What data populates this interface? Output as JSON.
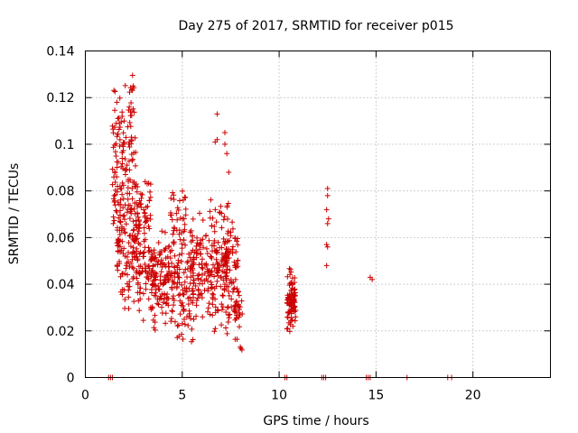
{
  "chart_data": {
    "type": "scatter",
    "title": "Day 275 of 2017, SRMTID for receiver p015",
    "xlabel": "GPS time / hours",
    "ylabel": "SRMTID / TECUs",
    "xlim": [
      0,
      24
    ],
    "ylim": [
      0,
      0.14
    ],
    "xticks": [
      0,
      5,
      10,
      15,
      20
    ],
    "xtick_labels": [
      "0",
      "5",
      "10",
      "15",
      "20"
    ],
    "yticks": [
      0,
      0.02,
      0.04,
      0.06,
      0.08,
      0.1,
      0.12,
      0.14
    ],
    "ytick_labels": [
      "0",
      "0.02",
      "0.04",
      "0.06",
      "0.08",
      "0.1",
      "0.12",
      "0.14"
    ],
    "grid": true,
    "marker": "+",
    "marker_color": "#cc0000",
    "series": [
      {
        "name": "SRMTID",
        "clusters": [
          {
            "x": [
              1.4,
              2.6
            ],
            "y": [
              0.045,
              0.137
            ],
            "n": 170
          },
          {
            "x": [
              1.6,
              2.8
            ],
            "y": [
              0.025,
              0.08
            ],
            "n": 90
          },
          {
            "x": [
              2.6,
              3.4
            ],
            "y": [
              0.04,
              0.09
            ],
            "n": 70
          },
          {
            "x": [
              2.6,
              3.6
            ],
            "y": [
              0.023,
              0.06
            ],
            "n": 50
          },
          {
            "x": [
              3.4,
              4.6
            ],
            "y": [
              0.018,
              0.065
            ],
            "n": 130
          },
          {
            "x": [
              4.4,
              5.2
            ],
            "y": [
              0.05,
              0.086
            ],
            "n": 40
          },
          {
            "x": [
              4.6,
              5.6
            ],
            "y": [
              0.012,
              0.065
            ],
            "n": 90
          },
          {
            "x": [
              5.4,
              6.6
            ],
            "y": [
              0.02,
              0.075
            ],
            "n": 100
          },
          {
            "x": [
              6.4,
              7.4
            ],
            "y": [
              0.015,
              0.08
            ],
            "n": 100
          },
          {
            "x": [
              7.0,
              7.9
            ],
            "y": [
              0.018,
              0.075
            ],
            "n": 80
          },
          {
            "x": [
              7.7,
              8.1
            ],
            "y": [
              0.008,
              0.05
            ],
            "n": 30
          },
          {
            "x": [
              10.4,
              10.85
            ],
            "y": [
              0.018,
              0.05
            ],
            "n": 90
          }
        ],
        "points": [
          {
            "x": 6.8,
            "y": 0.113
          },
          {
            "x": 6.7,
            "y": 0.101
          },
          {
            "x": 6.8,
            "y": 0.102
          },
          {
            "x": 7.2,
            "y": 0.105
          },
          {
            "x": 7.2,
            "y": 0.1
          },
          {
            "x": 7.3,
            "y": 0.096
          },
          {
            "x": 7.4,
            "y": 0.088
          },
          {
            "x": 12.5,
            "y": 0.081
          },
          {
            "x": 12.5,
            "y": 0.078
          },
          {
            "x": 12.45,
            "y": 0.072
          },
          {
            "x": 12.5,
            "y": 0.066
          },
          {
            "x": 12.55,
            "y": 0.068
          },
          {
            "x": 12.45,
            "y": 0.057
          },
          {
            "x": 12.5,
            "y": 0.056
          },
          {
            "x": 12.45,
            "y": 0.048
          },
          {
            "x": 14.7,
            "y": 0.043
          },
          {
            "x": 14.8,
            "y": 0.042
          },
          {
            "x": 1.2,
            "y": 0
          },
          {
            "x": 1.3,
            "y": 0
          },
          {
            "x": 1.4,
            "y": 0
          },
          {
            "x": 10.3,
            "y": 0
          },
          {
            "x": 10.4,
            "y": 0
          },
          {
            "x": 12.2,
            "y": 0
          },
          {
            "x": 12.3,
            "y": 0
          },
          {
            "x": 12.4,
            "y": 0
          },
          {
            "x": 14.5,
            "y": 0
          },
          {
            "x": 14.6,
            "y": 0
          },
          {
            "x": 14.7,
            "y": 0
          },
          {
            "x": 16.6,
            "y": 0
          },
          {
            "x": 18.7,
            "y": 0
          },
          {
            "x": 18.9,
            "y": 0
          }
        ]
      }
    ]
  }
}
